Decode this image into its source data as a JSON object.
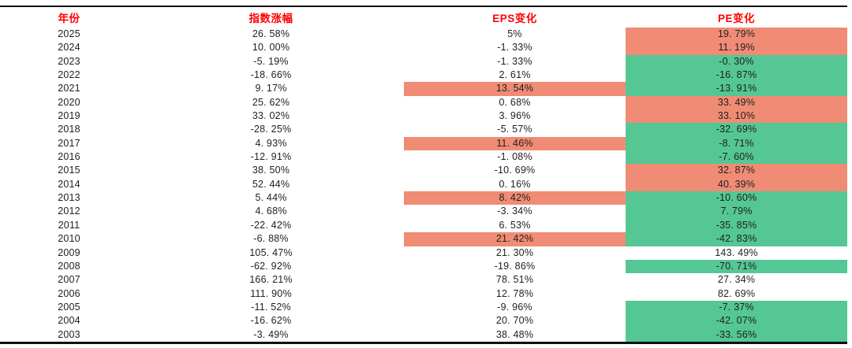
{
  "table": {
    "columns": [
      {
        "id": "year",
        "label": "年份"
      },
      {
        "id": "index",
        "label": "指数涨幅"
      },
      {
        "id": "eps",
        "label": "EPS变化"
      },
      {
        "id": "pe",
        "label": "PE变化"
      }
    ],
    "rows": [
      {
        "year": "2025",
        "index": "26. 58%",
        "eps": "5%",
        "pe": "19. 79%",
        "eps_bg": "",
        "pe_bg": "red"
      },
      {
        "year": "2024",
        "index": "10. 00%",
        "eps": "-1. 33%",
        "pe": "11. 19%",
        "eps_bg": "",
        "pe_bg": "red"
      },
      {
        "year": "2023",
        "index": "-5. 19%",
        "eps": "-1. 33%",
        "pe": "-0. 30%",
        "eps_bg": "",
        "pe_bg": "green"
      },
      {
        "year": "2022",
        "index": "-18. 66%",
        "eps": "2. 61%",
        "pe": "-16. 87%",
        "eps_bg": "",
        "pe_bg": "green"
      },
      {
        "year": "2021",
        "index": "9. 17%",
        "eps": "13. 54%",
        "pe": "-13. 91%",
        "eps_bg": "red",
        "pe_bg": "green"
      },
      {
        "year": "2020",
        "index": "25. 62%",
        "eps": "0. 68%",
        "pe": "33. 49%",
        "eps_bg": "",
        "pe_bg": "red"
      },
      {
        "year": "2019",
        "index": "33. 02%",
        "eps": "3. 96%",
        "pe": "33. 10%",
        "eps_bg": "",
        "pe_bg": "red"
      },
      {
        "year": "2018",
        "index": "-28. 25%",
        "eps": "-5. 57%",
        "pe": "-32. 69%",
        "eps_bg": "",
        "pe_bg": "green"
      },
      {
        "year": "2017",
        "index": "4. 93%",
        "eps": "11. 46%",
        "pe": "-8. 71%",
        "eps_bg": "red",
        "pe_bg": "green"
      },
      {
        "year": "2016",
        "index": "-12. 91%",
        "eps": "-1. 08%",
        "pe": "-7. 60%",
        "eps_bg": "",
        "pe_bg": "green"
      },
      {
        "year": "2015",
        "index": "38. 50%",
        "eps": "-10. 69%",
        "pe": "32. 87%",
        "eps_bg": "",
        "pe_bg": "red"
      },
      {
        "year": "2014",
        "index": "52. 44%",
        "eps": "0. 16%",
        "pe": "40. 39%",
        "eps_bg": "",
        "pe_bg": "red"
      },
      {
        "year": "2013",
        "index": "5. 44%",
        "eps": "8. 42%",
        "pe": "-10. 60%",
        "eps_bg": "red",
        "pe_bg": "green"
      },
      {
        "year": "2012",
        "index": "4. 68%",
        "eps": "-3. 34%",
        "pe": "7. 79%",
        "eps_bg": "",
        "pe_bg": "green"
      },
      {
        "year": "2011",
        "index": "-22. 42%",
        "eps": "6. 53%",
        "pe": "-35. 85%",
        "eps_bg": "",
        "pe_bg": "green"
      },
      {
        "year": "2010",
        "index": "-6. 88%",
        "eps": "21. 42%",
        "pe": "-42. 83%",
        "eps_bg": "red",
        "pe_bg": "green"
      },
      {
        "year": "2009",
        "index": "105. 47%",
        "eps": "21. 30%",
        "pe": "143. 49%",
        "eps_bg": "",
        "pe_bg": ""
      },
      {
        "year": "2008",
        "index": "-62. 92%",
        "eps": "-19. 86%",
        "pe": "-70. 71%",
        "eps_bg": "",
        "pe_bg": "green"
      },
      {
        "year": "2007",
        "index": "166. 21%",
        "eps": "78. 51%",
        "pe": "27. 34%",
        "eps_bg": "",
        "pe_bg": ""
      },
      {
        "year": "2006",
        "index": "111. 90%",
        "eps": "12. 78%",
        "pe": "82. 69%",
        "eps_bg": "",
        "pe_bg": ""
      },
      {
        "year": "2005",
        "index": "-11. 52%",
        "eps": "-9. 96%",
        "pe": "-7. 37%",
        "eps_bg": "",
        "pe_bg": "green"
      },
      {
        "year": "2004",
        "index": "-16. 62%",
        "eps": "20. 70%",
        "pe": "-42. 07%",
        "eps_bg": "",
        "pe_bg": "green"
      },
      {
        "year": "2003",
        "index": "-3. 49%",
        "eps": "38. 48%",
        "pe": "-33. 56%",
        "eps_bg": "",
        "pe_bg": "green"
      }
    ]
  },
  "colors": {
    "header_text": "#FF0000",
    "highlight_red": "#F08C75",
    "highlight_green": "#55C794",
    "rule_line": "#101010"
  },
  "chart_data": {
    "type": "table",
    "title": "",
    "columns": [
      "年份",
      "指数涨幅",
      "EPS变化",
      "PE变化"
    ],
    "years": [
      2025,
      2024,
      2023,
      2022,
      2021,
      2020,
      2019,
      2018,
      2017,
      2016,
      2015,
      2014,
      2013,
      2012,
      2011,
      2010,
      2009,
      2008,
      2007,
      2006,
      2005,
      2004,
      2003
    ],
    "index_change_pct": [
      26.58,
      10.0,
      -5.19,
      -18.66,
      9.17,
      25.62,
      33.02,
      -28.25,
      4.93,
      -12.91,
      38.5,
      52.44,
      5.44,
      4.68,
      -22.42,
      -6.88,
      105.47,
      -62.92,
      166.21,
      111.9,
      -11.52,
      -16.62,
      -3.49
    ],
    "eps_change_pct": [
      5,
      -1.33,
      -1.33,
      2.61,
      13.54,
      0.68,
      3.96,
      -5.57,
      11.46,
      -1.08,
      -10.69,
      0.16,
      8.42,
      -3.34,
      6.53,
      21.42,
      21.3,
      -19.86,
      78.51,
      12.78,
      -9.96,
      20.7,
      38.48
    ],
    "pe_change_pct": [
      19.79,
      11.19,
      -0.3,
      -16.87,
      -13.91,
      33.49,
      33.1,
      -32.69,
      -8.71,
      -7.6,
      32.87,
      40.39,
      -10.6,
      7.79,
      -35.85,
      -42.83,
      143.49,
      -70.71,
      27.34,
      82.69,
      -7.37,
      -42.07,
      -33.56
    ],
    "highlight_red_cells": {
      "EPS变化": [
        2021,
        2017,
        2013,
        2010
      ],
      "PE变化": [
        2025,
        2024,
        2020,
        2019,
        2015,
        2014
      ]
    },
    "highlight_green_cells": {
      "PE变化": [
        2023,
        2022,
        2021,
        2018,
        2017,
        2016,
        2013,
        2012,
        2011,
        2010,
        2008,
        2005,
        2004,
        2003
      ]
    },
    "layout": {
      "grid": false,
      "legend": false,
      "header_color": "#FF0000"
    }
  }
}
